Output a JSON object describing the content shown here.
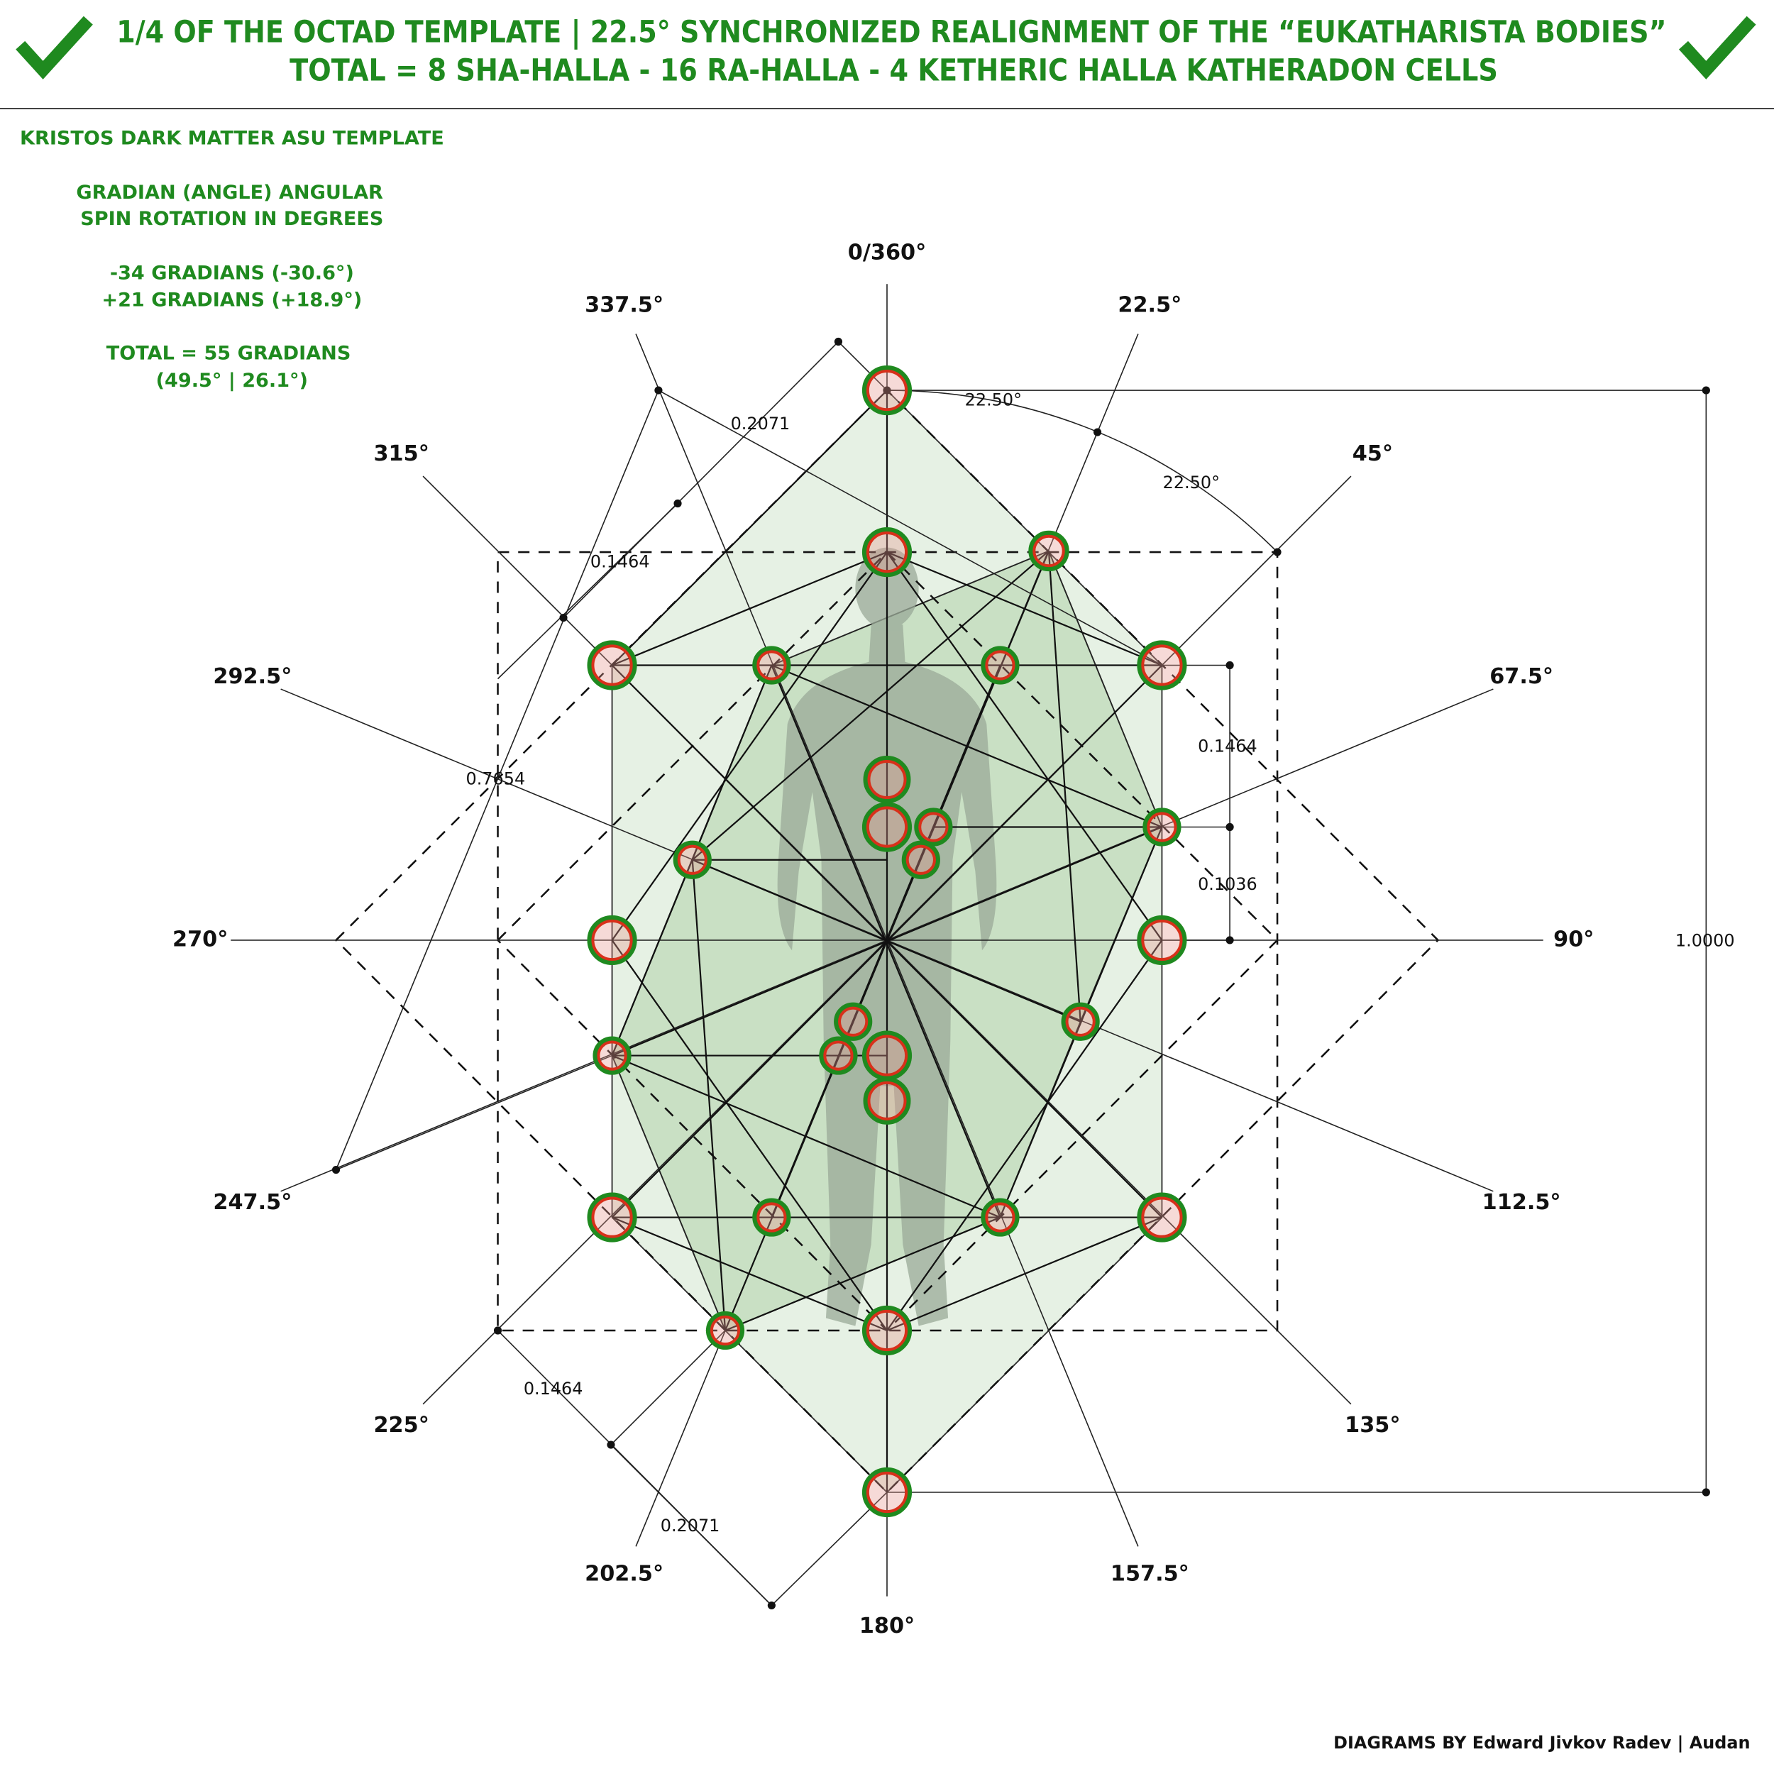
{
  "header": {
    "title_lines": [
      "1/4 OF THE OCTAD TEMPLATE | 22.5° SYNCHRONIZED REALIGNMENT OF THE “EUKATHARISTA BODIES”",
      "TOTAL = 8 SHA-HALLA - 16 RA-HALLA - 4 KETHERIC HALLA KATHERADON CELLS"
    ]
  },
  "notes": [
    "KRISTOS DARK MATTER ASU TEMPLATE",
    "GRADIAN (ANGLE) ANGULAR",
    "SPIN ROTATION IN DEGREES",
    "-34 GRADIANS (-30.6°)",
    "+21 GRADIANS (+18.9°)",
    "TOTAL = 55 GRADIANS",
    "(49.5° | 26.1°)"
  ],
  "angle_labels": [
    "0/360°",
    "22.5°",
    "45°",
    "67.5°",
    "90°",
    "112.5°",
    "135°",
    "157.5°",
    "180°",
    "202.5°",
    "225°",
    "247.5°",
    "270°",
    "292.5°",
    "315°",
    "337.5°"
  ],
  "measurements": [
    "22.50°",
    "22.50°",
    "0.2071",
    "0.1464",
    "0.1464",
    "0.1036",
    "0.7654",
    "1.0000",
    "0.1464",
    "0.2071"
  ],
  "footer": "DIAGRAMS BY Edward Jivkov Radev | Audan"
}
